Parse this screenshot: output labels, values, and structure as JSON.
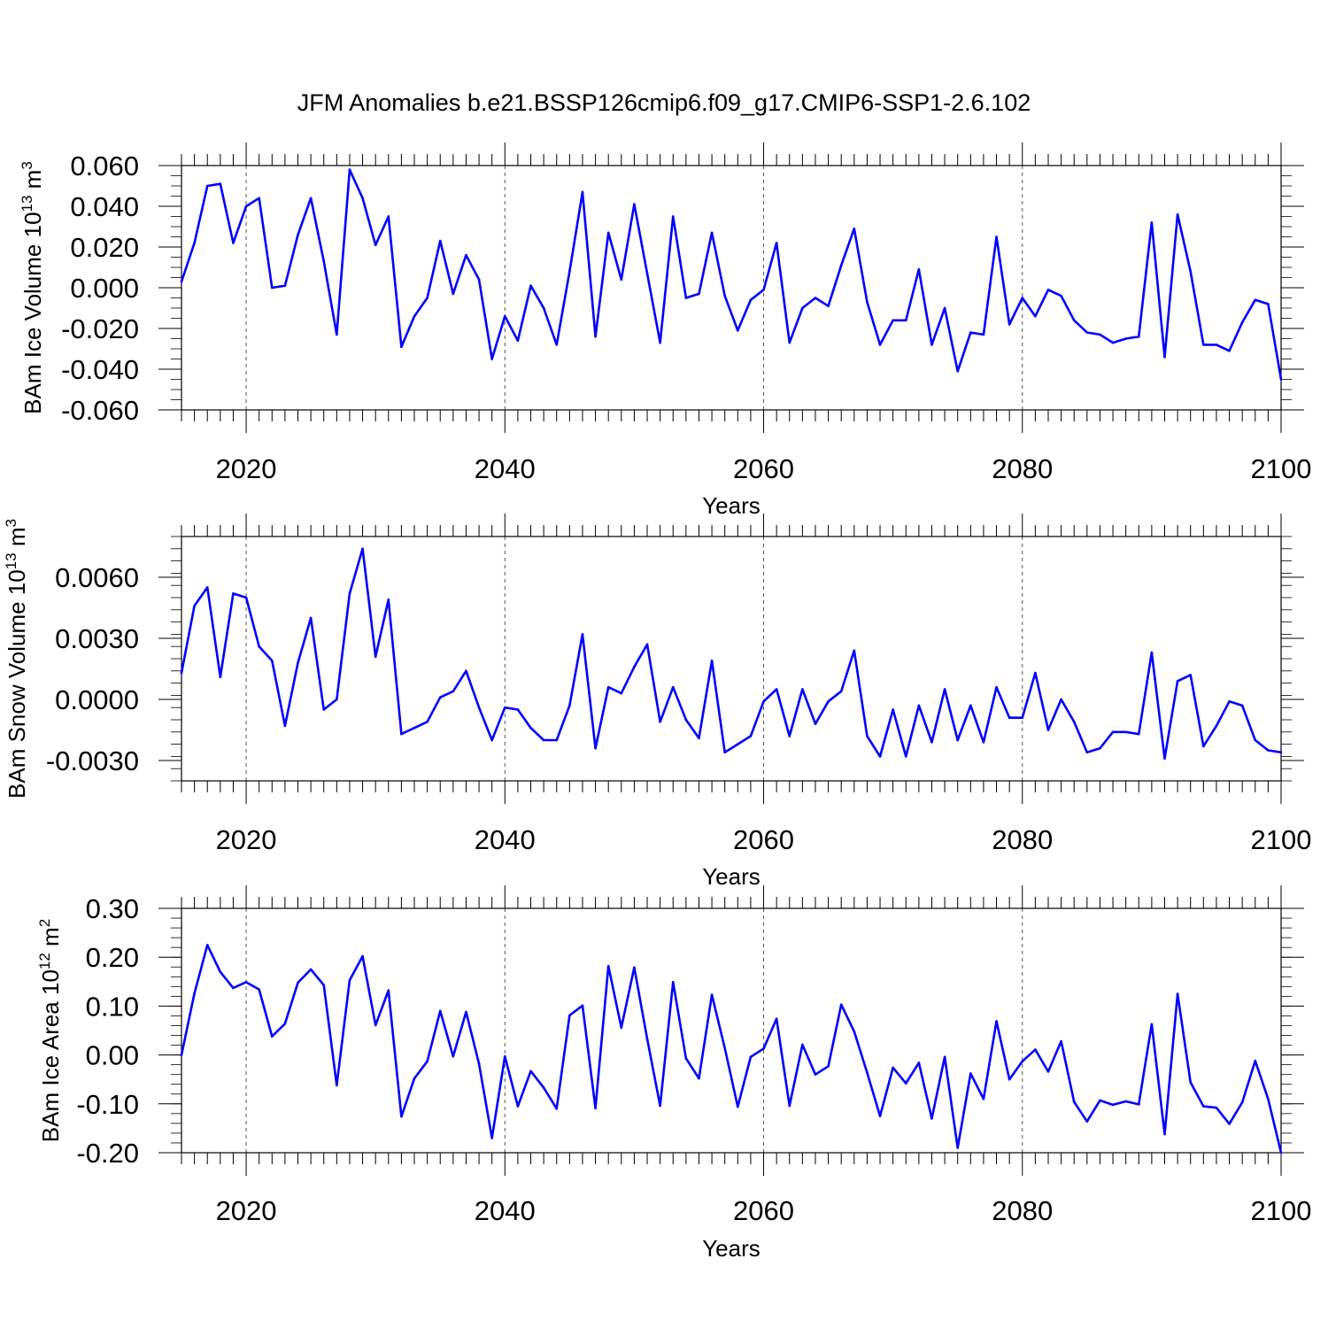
{
  "title": "JFM Anomalies b.e21.BSSP126cmip6.f09_g17.CMIP6-SSP1-2.6.102",
  "colors": {
    "line": "#0000ff",
    "axis": "#000000",
    "grid": "#555555"
  },
  "chart_data": [
    {
      "type": "line",
      "ylabel_main": "BAm Ice Volume 10",
      "ylabel_exp": "13",
      "ylabel_unit": " m",
      "ylabel_unit_exp": "3",
      "xlabel": "Years",
      "xlim": [
        2015,
        2100
      ],
      "ylim": [
        -0.06,
        0.06
      ],
      "xticks": [
        2020,
        2040,
        2060,
        2080,
        2100
      ],
      "xtick_labels": [
        "2020",
        "2040",
        "2060",
        "2080",
        "2100"
      ],
      "yticks": [
        -0.06,
        -0.04,
        -0.02,
        0.0,
        0.02,
        0.04,
        0.06
      ],
      "ytick_labels": [
        "-0.060",
        "-0.040",
        "-0.020",
        "0.000",
        "0.020",
        "0.040",
        "0.060"
      ],
      "yminor_step": 0.005,
      "grid": "vertical dashed at major x ticks",
      "series": [
        {
          "name": "BAm Ice Volume",
          "values": [
            0.003,
            0.022,
            0.05,
            0.051,
            0.022,
            0.04,
            0.044,
            0.0,
            0.001,
            0.026,
            0.044,
            0.013,
            -0.023,
            0.058,
            0.044,
            0.021,
            0.035,
            -0.029,
            -0.014,
            -0.005,
            0.023,
            -0.003,
            0.016,
            0.004,
            -0.035,
            -0.014,
            -0.026,
            0.001,
            -0.01,
            -0.028,
            0.008,
            0.047,
            -0.024,
            0.027,
            0.004,
            0.041,
            0.007,
            -0.027,
            0.035,
            -0.005,
            -0.003,
            0.027,
            -0.004,
            -0.021,
            -0.006,
            -0.001,
            0.022,
            -0.027,
            -0.01,
            -0.005,
            -0.009,
            0.011,
            0.029,
            -0.007,
            -0.028,
            -0.016,
            -0.016,
            0.009,
            -0.028,
            -0.01,
            -0.041,
            -0.022,
            -0.023,
            0.025,
            -0.018,
            -0.005,
            -0.014,
            -0.001,
            -0.004,
            -0.016,
            -0.022,
            -0.023,
            -0.027,
            -0.025,
            -0.024,
            0.032,
            -0.034,
            0.036,
            0.008,
            -0.028,
            -0.028,
            -0.031,
            -0.017,
            -0.006,
            -0.008,
            -0.045
          ]
        }
      ]
    },
    {
      "type": "line",
      "ylabel_main": "BAm Snow Volume 10",
      "ylabel_exp": "13",
      "ylabel_unit": " m",
      "ylabel_unit_exp": "3",
      "xlabel": "Years",
      "xlim": [
        2015,
        2100
      ],
      "ylim": [
        -0.004,
        0.008
      ],
      "xticks": [
        2020,
        2040,
        2060,
        2080,
        2100
      ],
      "xtick_labels": [
        "2020",
        "2040",
        "2060",
        "2080",
        "2100"
      ],
      "yticks": [
        -0.003,
        0.0,
        0.003,
        0.006
      ],
      "ytick_labels": [
        "-0.0030",
        "0.0000",
        "0.0030",
        "0.0060"
      ],
      "yminor_step": 0.0006,
      "grid": "vertical dashed at major x ticks",
      "series": [
        {
          "name": "BAm Snow Volume",
          "values": [
            0.0013,
            0.0046,
            0.0055,
            0.0011,
            0.0052,
            0.005,
            0.0026,
            0.0019,
            -0.0013,
            0.0018,
            0.004,
            -0.0005,
            0.0,
            0.0052,
            0.0074,
            0.0021,
            0.0049,
            -0.0017,
            -0.0014,
            -0.0011,
            0.0001,
            0.0004,
            0.0014,
            -0.0004,
            -0.002,
            -0.0004,
            -0.0005,
            -0.0014,
            -0.002,
            -0.002,
            -0.0003,
            0.0032,
            -0.0024,
            0.0006,
            0.0003,
            0.0016,
            0.0027,
            -0.0011,
            0.0006,
            -0.001,
            -0.0019,
            0.0019,
            -0.0026,
            -0.0022,
            -0.0018,
            -0.0001,
            0.0005,
            -0.0018,
            0.0005,
            -0.0012,
            -0.0001,
            0.0004,
            0.0024,
            -0.0018,
            -0.0028,
            -0.0005,
            -0.0028,
            -0.0003,
            -0.0021,
            0.0005,
            -0.002,
            -0.0003,
            -0.0021,
            0.0006,
            -0.0009,
            -0.0009,
            0.0013,
            -0.0015,
            0.0,
            -0.0011,
            -0.0026,
            -0.0024,
            -0.0016,
            -0.0016,
            -0.0017,
            0.0023,
            -0.0029,
            0.0009,
            0.0012,
            -0.0023,
            -0.0013,
            -0.0001,
            -0.0003,
            -0.002,
            -0.0025,
            -0.0026
          ]
        }
      ]
    },
    {
      "type": "line",
      "ylabel_main": "BAm Ice Area 10",
      "ylabel_exp": "12",
      "ylabel_unit": " m",
      "ylabel_unit_exp": "2",
      "xlabel": "Years",
      "xlim": [
        2015,
        2100
      ],
      "ylim": [
        -0.2,
        0.3
      ],
      "xticks": [
        2020,
        2040,
        2060,
        2080,
        2100
      ],
      "xtick_labels": [
        "2020",
        "2040",
        "2060",
        "2080",
        "2100"
      ],
      "yticks": [
        -0.2,
        -0.1,
        0.0,
        0.1,
        0.2,
        0.3
      ],
      "ytick_labels": [
        "-0.20",
        "-0.10",
        "0.00",
        "0.10",
        "0.20",
        "0.30"
      ],
      "yminor_step": 0.02,
      "grid": "vertical dashed at major x ticks",
      "series": [
        {
          "name": "BAm Ice Area",
          "values": [
            0.0,
            0.126,
            0.225,
            0.17,
            0.137,
            0.149,
            0.134,
            0.038,
            0.064,
            0.148,
            0.175,
            0.143,
            -0.062,
            0.153,
            0.202,
            0.061,
            0.132,
            -0.126,
            -0.048,
            -0.013,
            0.09,
            -0.003,
            0.088,
            -0.018,
            -0.17,
            -0.003,
            -0.105,
            -0.033,
            -0.067,
            -0.11,
            0.081,
            0.101,
            -0.109,
            0.182,
            0.056,
            0.179,
            0.033,
            -0.104,
            0.149,
            -0.007,
            -0.048,
            0.123,
            0.014,
            -0.106,
            -0.004,
            0.013,
            0.074,
            -0.104,
            0.021,
            -0.04,
            -0.023,
            0.103,
            0.048,
            -0.036,
            -0.125,
            -0.026,
            -0.058,
            -0.016,
            -0.13,
            -0.004,
            -0.19,
            -0.038,
            -0.09,
            0.069,
            -0.05,
            -0.013,
            0.011,
            -0.034,
            0.028,
            -0.096,
            -0.136,
            -0.093,
            -0.102,
            -0.095,
            -0.101,
            0.063,
            -0.162,
            0.125,
            -0.056,
            -0.105,
            -0.108,
            -0.141,
            -0.097,
            -0.012,
            -0.09,
            -0.2
          ]
        }
      ]
    }
  ]
}
